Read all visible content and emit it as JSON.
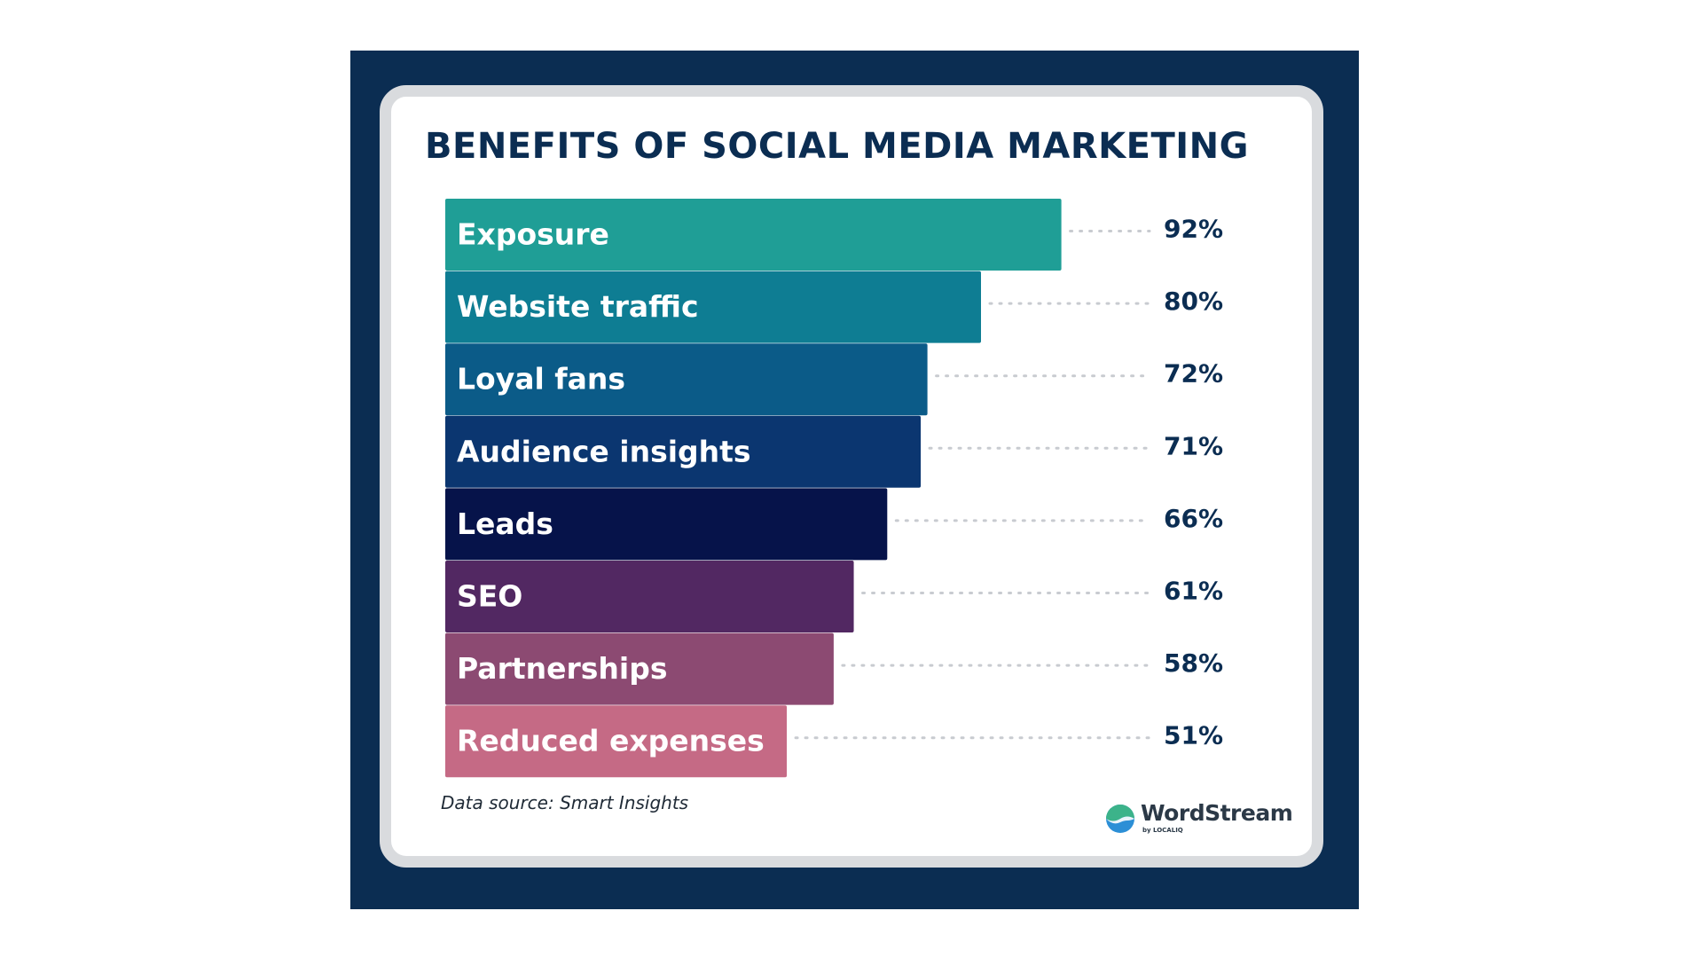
{
  "chart_data": {
    "type": "bar",
    "orientation": "horizontal",
    "title": "BENEFITS OF SOCIAL MEDIA MARKETING",
    "categories": [
      "Exposure",
      "Website traffic",
      "Loyal fans",
      "Audience insights",
      "Leads",
      "SEO",
      "Partnerships",
      "Reduced expenses"
    ],
    "values": [
      92,
      80,
      72,
      71,
      66,
      61,
      58,
      51
    ],
    "value_labels": [
      "92%",
      "80%",
      "72%",
      "71%",
      "66%",
      "61%",
      "58%",
      "51%"
    ],
    "unit": "%",
    "colors": [
      "#1f9e96",
      "#0e7d93",
      "#0b5b88",
      "#0b3670",
      "#06134a",
      "#522862",
      "#8c4a72",
      "#c56a85"
    ],
    "xlim": [
      0,
      100
    ],
    "grid": false,
    "legend": "none",
    "source": "Data source: Smart Insights"
  },
  "brand": {
    "name": "WordStream",
    "sub": "by LOCALIQ"
  },
  "theme": {
    "frame_color": "#0b2d52",
    "title_color": "#0b2d52",
    "card_border_color": "#d9dbde"
  }
}
